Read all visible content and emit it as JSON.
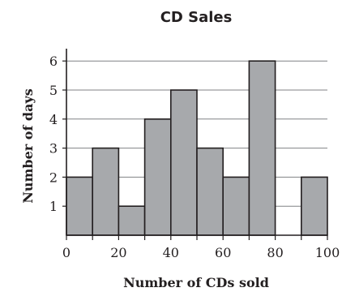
{
  "chart_data": {
    "type": "bar",
    "title": "CD Sales",
    "xlabel": "Number of CDs sold",
    "ylabel": "Number of days",
    "bins": [
      {
        "start": 0,
        "end": 10,
        "value": 2
      },
      {
        "start": 10,
        "end": 20,
        "value": 3
      },
      {
        "start": 20,
        "end": 30,
        "value": 1
      },
      {
        "start": 30,
        "end": 40,
        "value": 4
      },
      {
        "start": 40,
        "end": 50,
        "value": 5
      },
      {
        "start": 50,
        "end": 60,
        "value": 3
      },
      {
        "start": 60,
        "end": 70,
        "value": 2
      },
      {
        "start": 70,
        "end": 80,
        "value": 6
      },
      {
        "start": 80,
        "end": 90,
        "value": 0
      },
      {
        "start": 90,
        "end": 100,
        "value": 2
      }
    ],
    "xlim": [
      0,
      100
    ],
    "ylim": [
      0,
      6.5
    ],
    "x_ticks": [
      0,
      20,
      40,
      60,
      80,
      100
    ],
    "y_ticks": [
      1,
      2,
      3,
      4,
      5,
      6
    ],
    "grid": "horizontal",
    "colors": {
      "bar_fill": "#a7a9ac",
      "bar_stroke": "#231f20",
      "grid": "#808285",
      "axis": "#231f20"
    }
  }
}
